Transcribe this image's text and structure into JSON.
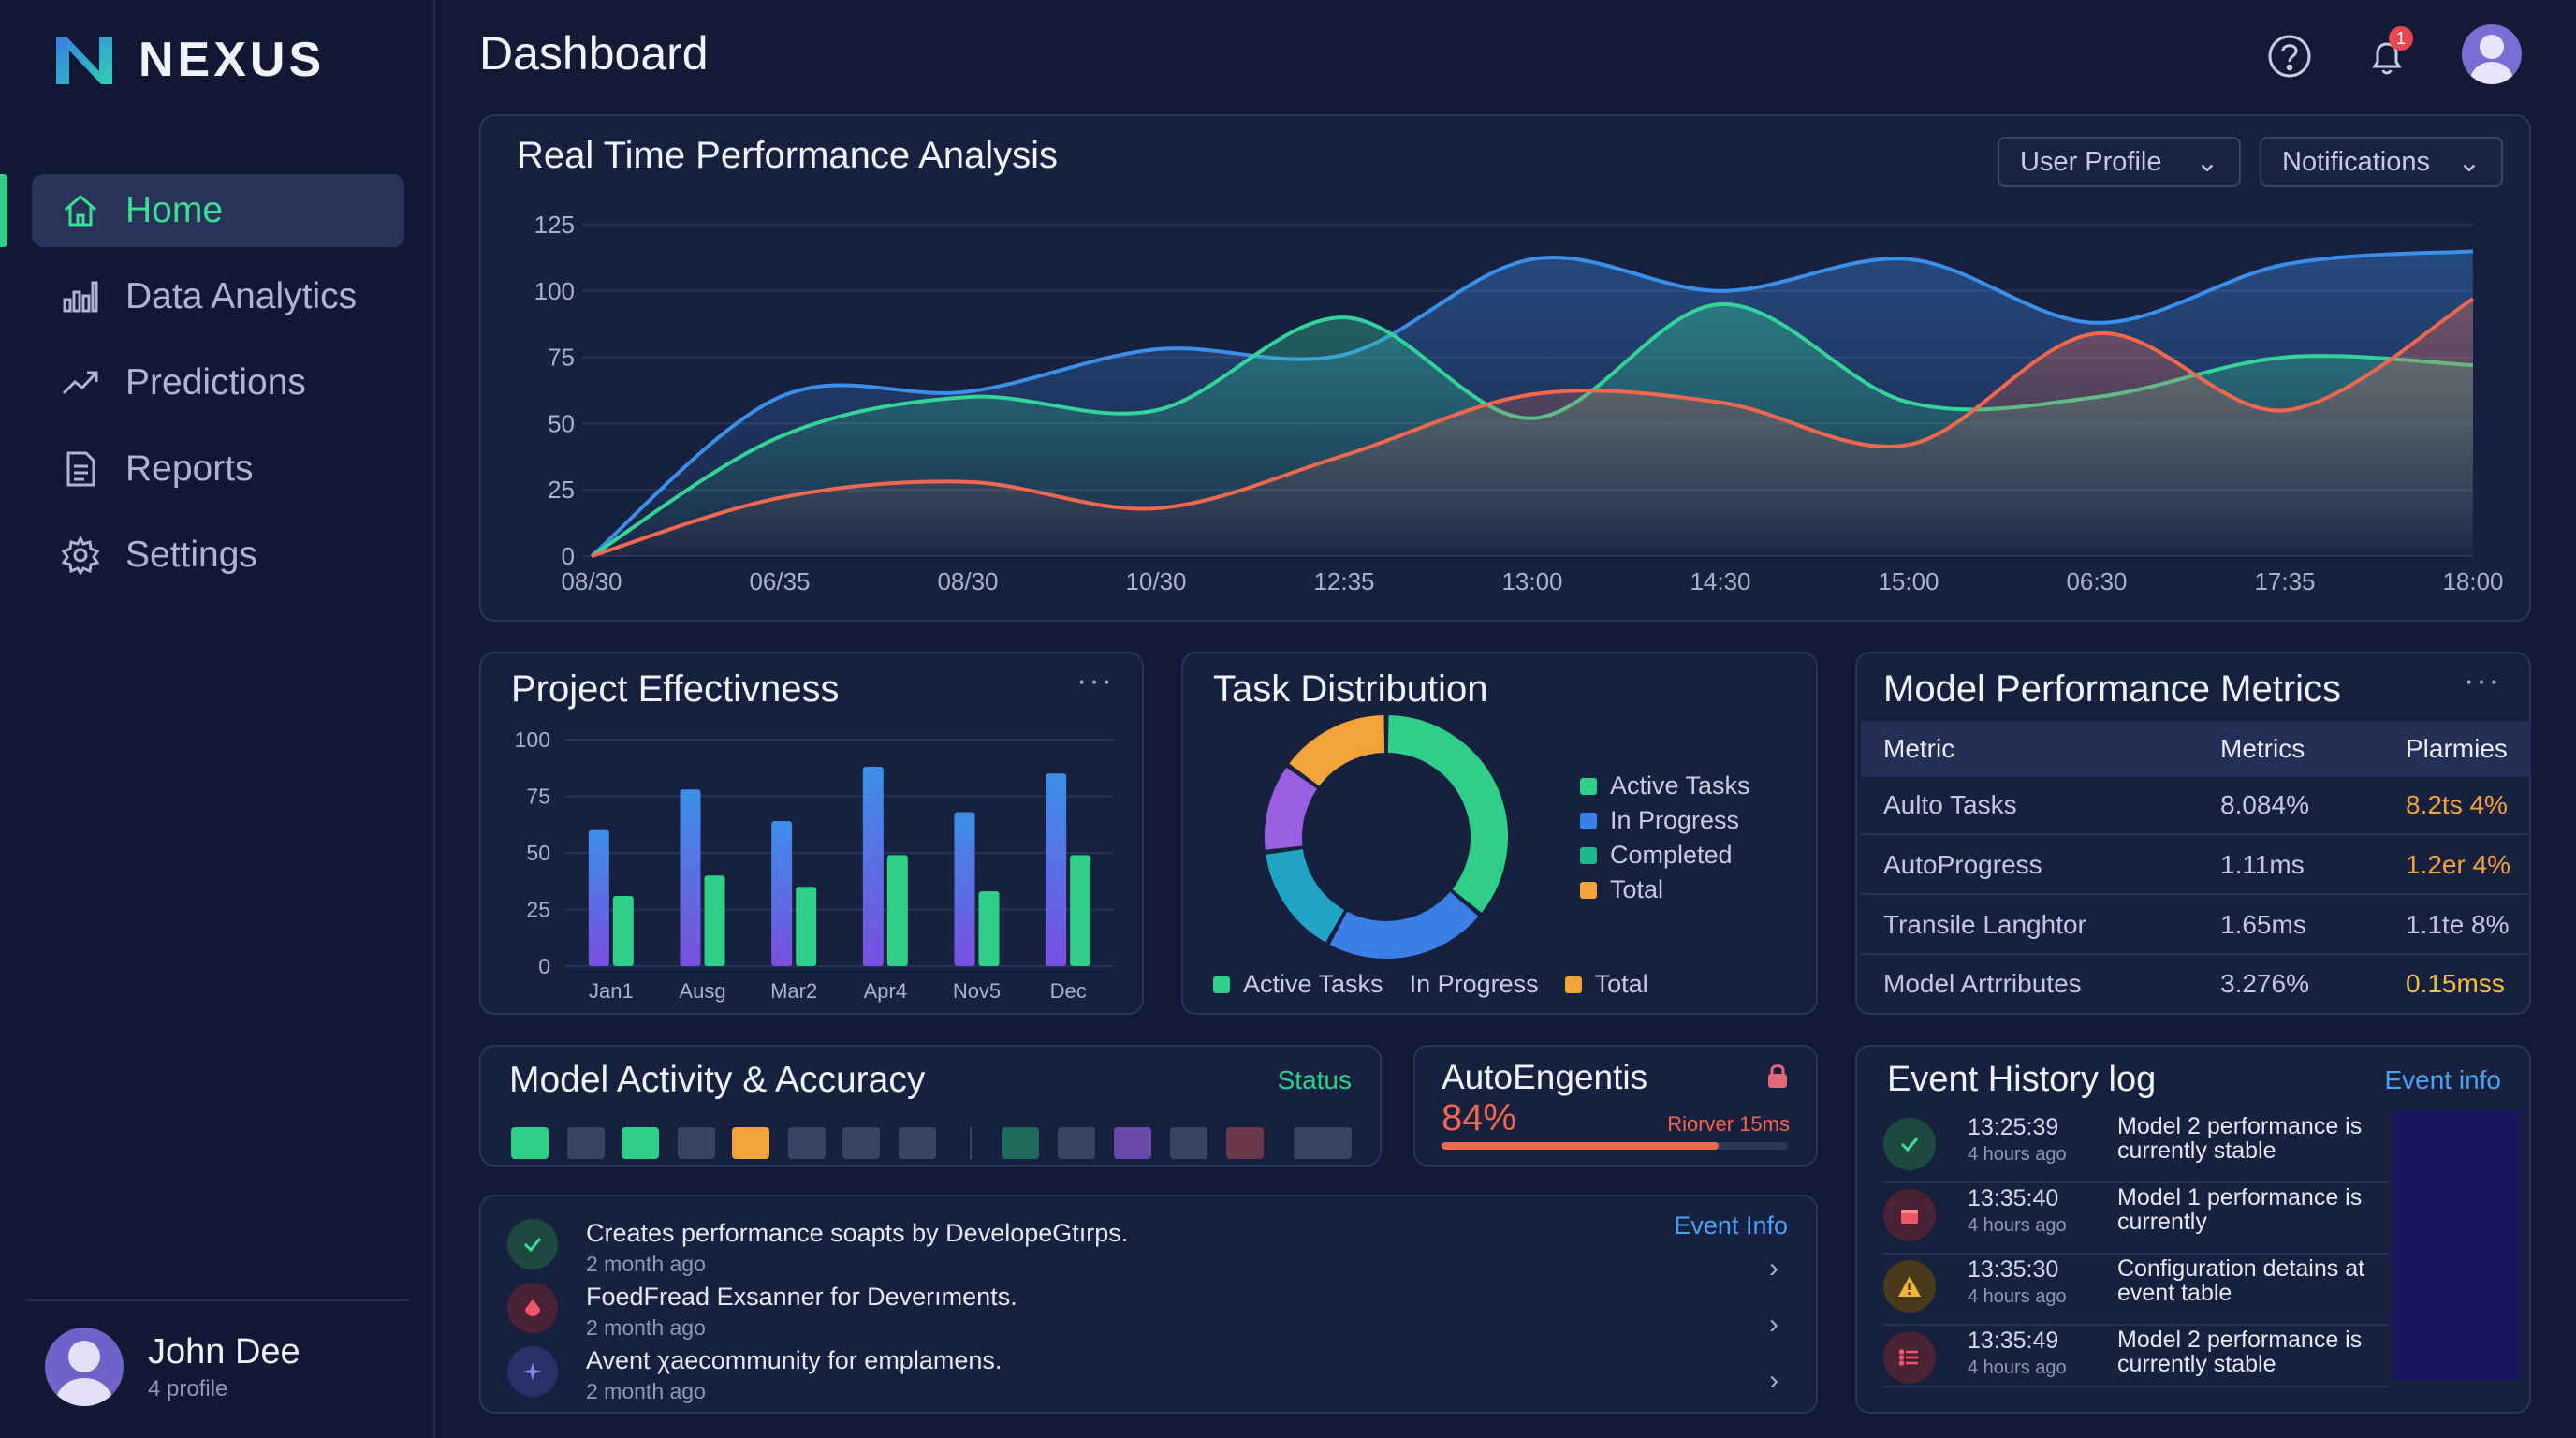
{
  "brand": {
    "name": "NEXUS"
  },
  "sidebar": {
    "items": [
      {
        "label": "Home",
        "icon": "home-icon",
        "active": true
      },
      {
        "label": "Data Analytics",
        "icon": "bar-chart-icon",
        "active": false
      },
      {
        "label": "Predictions",
        "icon": "trend-icon",
        "active": false
      },
      {
        "label": "Reports",
        "icon": "document-icon",
        "active": false
      },
      {
        "label": "Settings",
        "icon": "gear-icon",
        "active": false
      }
    ],
    "profile": {
      "name": "John Dee",
      "subtitle": "4 profile"
    }
  },
  "header": {
    "title": "Dashboard",
    "notification_count": "1",
    "icons": [
      "help-icon",
      "bell-icon",
      "user-avatar"
    ]
  },
  "colors": {
    "accent_green": "#2fcf88",
    "series_blue": "#3b8fe8",
    "series_green": "#34d399",
    "series_red": "#f0684e",
    "orange": "#f2a33a",
    "purple": "#9a5fe0"
  },
  "realtime": {
    "title": "Real Time Performance Analysis",
    "dropdown_user": "User Profile",
    "dropdown_notifications": "Notifications"
  },
  "project": {
    "title": "Project Effectivness"
  },
  "tasks": {
    "title": "Task Distribution",
    "legend_right": [
      "Active Tasks",
      "In Progress",
      "Completed",
      "Total"
    ],
    "legend_bottom": [
      "Active Tasks",
      "In Progress",
      "Total"
    ]
  },
  "metrics": {
    "title": "Model Performance Metrics",
    "columns": [
      "Metric",
      "Metrics",
      "Plarmies"
    ],
    "rows": [
      [
        "Aulto Tasks",
        "8.084%",
        "8.2ts 4%"
      ],
      [
        "AutoProgress",
        "1.11ms",
        "1.2er 4%"
      ],
      [
        "Transile Langhtor",
        "1.65ms",
        "1.1te 8%"
      ],
      [
        "Model Artrributes",
        "3.276%",
        "0.15mss"
      ]
    ]
  },
  "activity": {
    "title": "Model Activity & Accuracy",
    "status_label": "Status",
    "squares": [
      "#2fcf88",
      "#3a4366",
      "#2fcf88",
      "#3a4366",
      "#f2a33a",
      "#3a4366",
      "#3a4366",
      "#3a4366",
      "#1e6b5a",
      "#3a4366",
      "#6a4aa8",
      "#3a4366",
      "#6b3a4a",
      "#3a4366"
    ]
  },
  "autoeng": {
    "title": "AutoEngentis",
    "value": "84%",
    "sub": "Riorver 15ms",
    "progress": 0.8
  },
  "feed": {
    "link": "Event Info",
    "items": [
      {
        "title": "Creates performance soapts by DevelopeGtırps.",
        "time": "2 month ago",
        "icon": "check-icon"
      },
      {
        "title": "FoedFread Exsanner for Deverıments.",
        "time": "2 month ago",
        "icon": "drop-icon"
      },
      {
        "title": "Avent χaecommunity for emplamens.",
        "time": "2 month ago",
        "icon": "sparkle-icon"
      }
    ]
  },
  "events": {
    "title": "Event History log",
    "link": "Event info",
    "rows": [
      {
        "time": "13:25:39",
        "ago": "4 hours ago",
        "text": "Model 2 performance is currently stable",
        "icon": "check-icon"
      },
      {
        "time": "13:35:40",
        "ago": "4 hours ago",
        "text": "Model 1 performance is currently",
        "icon": "calendar-icon"
      },
      {
        "time": "13:35:30",
        "ago": "4 hours ago",
        "text": "Configuration detains at event table",
        "icon": "warning-icon"
      },
      {
        "time": "13:35:49",
        "ago": "4 hours ago",
        "text": "Model 2 performance is currently stable",
        "icon": "list-icon"
      }
    ]
  },
  "chart_data": [
    {
      "type": "area",
      "title": "Real Time Performance Analysis",
      "x": [
        "08/30",
        "06/35",
        "08/30",
        "10/30",
        "12:35",
        "13:00",
        "14:30",
        "15:00",
        "06:30",
        "17:35",
        "18:00"
      ],
      "ylim": [
        0,
        125
      ],
      "yticks": [
        0,
        25,
        50,
        75,
        100,
        125
      ],
      "grid": true,
      "series": [
        {
          "color": "#3b8fe8",
          "values": [
            0,
            60,
            62,
            78,
            76,
            112,
            100,
            112,
            88,
            110,
            115
          ]
        },
        {
          "color": "#34d399",
          "values": [
            0,
            45,
            60,
            55,
            90,
            52,
            95,
            58,
            60,
            75,
            72
          ]
        },
        {
          "color": "#f0684e",
          "values": [
            0,
            22,
            28,
            18,
            38,
            61,
            58,
            42,
            84,
            55,
            97
          ]
        }
      ]
    },
    {
      "type": "bar",
      "title": "Project Effectivness",
      "categories": [
        "Jan1",
        "Ausg",
        "Mar2",
        "Apr4",
        "Nov5",
        "Dec"
      ],
      "ylim": [
        0,
        100
      ],
      "yticks": [
        0,
        25,
        50,
        75,
        100
      ],
      "series": [
        {
          "color": "#4a7ff0",
          "values": [
            60,
            78,
            64,
            88,
            68,
            85
          ]
        },
        {
          "color": "#2fcf88",
          "values": [
            31,
            40,
            35,
            49,
            33,
            49
          ]
        }
      ]
    },
    {
      "type": "pie",
      "title": "Task Distribution",
      "slices": [
        {
          "color": "#2fcf88",
          "value": 0.36
        },
        {
          "color": "#3b7fe8",
          "value": 0.22
        },
        {
          "color": "#1fa3c7",
          "value": 0.15
        },
        {
          "color": "#9a5fe0",
          "value": 0.12
        },
        {
          "color": "#f2a33a",
          "value": 0.15
        }
      ]
    }
  ]
}
